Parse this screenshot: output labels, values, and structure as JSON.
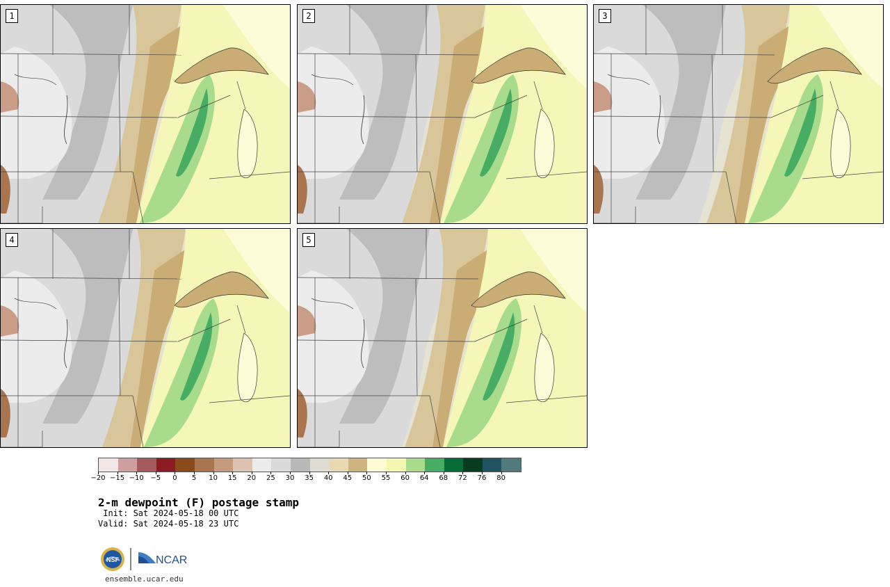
{
  "panels": [
    {
      "label": "1"
    },
    {
      "label": "2"
    },
    {
      "label": "3"
    },
    {
      "label": "4"
    },
    {
      "label": "5"
    }
  ],
  "colorbar": {
    "colors": [
      "#f3e6e6",
      "#cf9fa0",
      "#a55a5e",
      "#8c1b23",
      "#8a4a1a",
      "#a9754f",
      "#c49b7e",
      "#dcc3b1",
      "#ececec",
      "#dadada",
      "#b9b9b9",
      "#dedcd0",
      "#e8d9b3",
      "#cdb47e",
      "#fdfcd4",
      "#f4f7b0",
      "#a8dc8c",
      "#48ad64",
      "#066c37",
      "#063d21",
      "#1f5460",
      "#507a7c"
    ],
    "ticks": [
      "−20",
      "−15",
      "−10",
      "−5",
      "0",
      "5",
      "10",
      "15",
      "20",
      "25",
      "30",
      "35",
      "40",
      "45",
      "50",
      "55",
      "60",
      "64",
      "68",
      "72",
      "76",
      "80"
    ]
  },
  "title": "2-m dewpoint (F) postage stamp",
  "init": " Init: Sat 2024-05-18 00 UTC",
  "valid": "Valid: Sat 2024-05-18 23 UTC",
  "logos": {
    "nsf": "NSF",
    "ncar": "NCAR"
  },
  "url": "ensemble.ucar.edu"
}
